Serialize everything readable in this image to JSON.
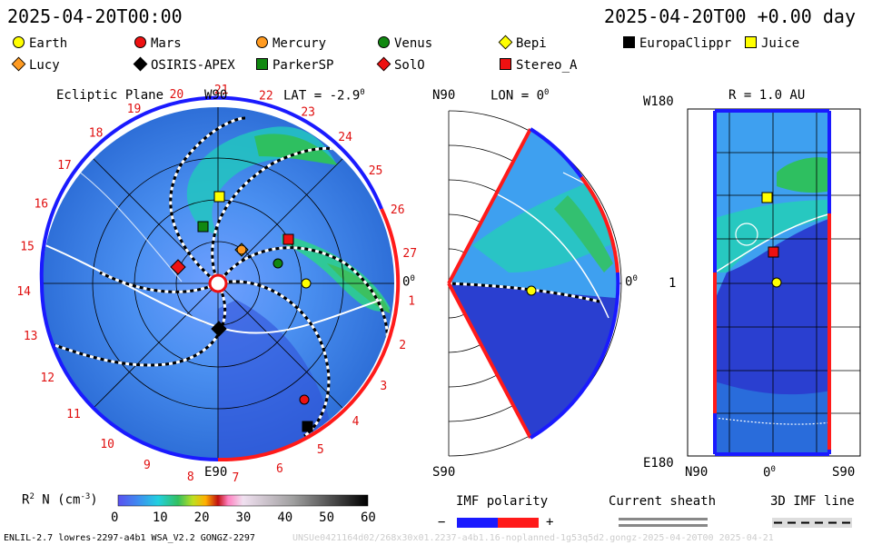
{
  "header": {
    "left_time": "2025-04-20T00:00",
    "right_time": "2025-04-20T00 +0.00 day"
  },
  "legend": [
    {
      "label": "Earth",
      "shape": "circle",
      "color": "#ffff00"
    },
    {
      "label": "Mars",
      "shape": "circle",
      "color": "#ee1111"
    },
    {
      "label": "Mercury",
      "shape": "circle",
      "color": "#ff9a20"
    },
    {
      "label": "Venus",
      "shape": "circle",
      "color": "#118811"
    },
    {
      "label": "Bepi",
      "shape": "diamond",
      "color": "#ffff00"
    },
    {
      "label": "EuropaClippr",
      "shape": "square",
      "color": "#000000"
    },
    {
      "label": "Juice",
      "shape": "square",
      "color": "#ffff00"
    },
    {
      "label": "Lucy",
      "shape": "diamond",
      "color": "#ff9a20"
    },
    {
      "label": "OSIRIS-APEX",
      "shape": "diamond",
      "color": "#000000"
    },
    {
      "label": "ParkerSP",
      "shape": "square",
      "color": "#118811"
    },
    {
      "label": "SolO",
      "shape": "diamond",
      "color": "#ee1111"
    },
    {
      "label": "Stereo_A",
      "shape": "square",
      "color": "#ee1111"
    }
  ],
  "ecliptic": {
    "title": "Ecliptic Plane",
    "lat": "LAT = -2.9",
    "deg": "0",
    "top_label": "W90",
    "bottom_label": "E90",
    "right_label": "0",
    "right_deg": "0",
    "carrington_numbers": [
      "1",
      "2",
      "3",
      "4",
      "5",
      "6",
      "7",
      "8",
      "9",
      "10",
      "11",
      "12",
      "13",
      "14",
      "15",
      "16",
      "17",
      "18",
      "19",
      "20",
      "21",
      "22",
      "23",
      "24",
      "25",
      "26",
      "27"
    ]
  },
  "meridional": {
    "title": "LON = 0",
    "deg": "0",
    "top_label": "N90",
    "bottom_label": "S90",
    "right_label": "0",
    "right_deg": "0"
  },
  "latlon": {
    "title": "R = 1.0 AU",
    "top_left": "W180",
    "mid_left": "1",
    "bottom_left": "E180",
    "x_left": "N90",
    "x_mid": "0",
    "x_mid_deg": "0",
    "x_right": "S90"
  },
  "colorbar": {
    "label": "R",
    "label_sup": "2",
    "label_rest": " N (cm",
    "unit_sup": "-3",
    "label_end": ")",
    "ticks": [
      "0",
      "10",
      "20",
      "30",
      "40",
      "50",
      "60"
    ]
  },
  "imf": {
    "title": "IMF polarity",
    "minus": "−",
    "plus": "+",
    "sheath_title": "Current sheath",
    "line_title": "3D IMF line"
  },
  "footer": {
    "model": "ENLIL-2.7 lowres-2297-a4b1 WSA_V2.2 GONGZ-2297",
    "watermark": "UNSUe0421164d02/268x30x01.2237-a4b1.16-noplanned-1g53q5d2.gongz-2025-04-20T00 2025-04-21"
  },
  "colors": {
    "blue_polarity": "#1a1aff",
    "red_polarity": "#ff1a1a",
    "background_density": "#3a7fe8"
  }
}
